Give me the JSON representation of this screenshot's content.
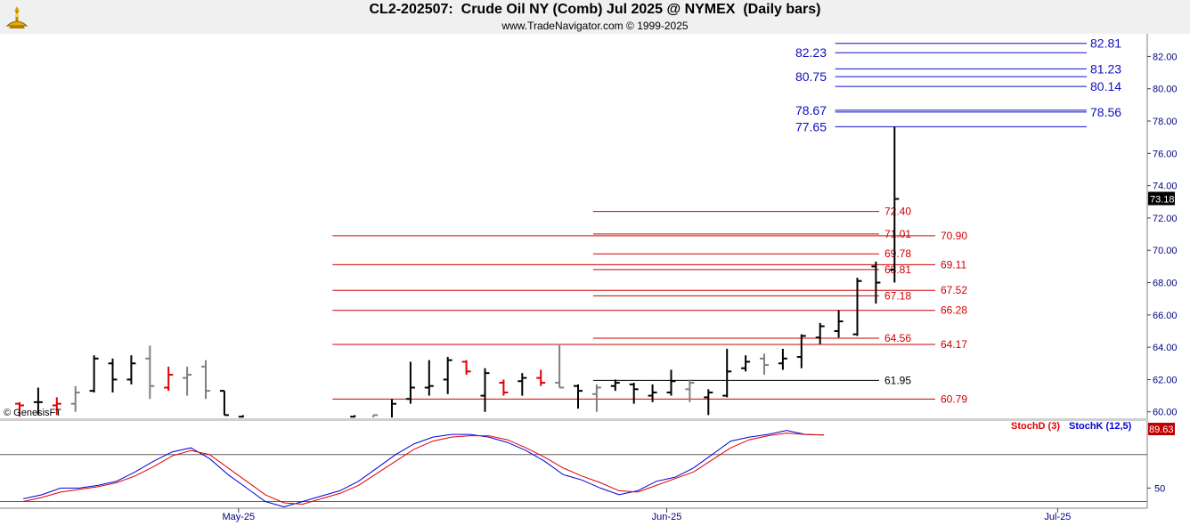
{
  "header": {
    "title": "CL2-202507:  Crude Oil NY (Comb) Jul 2025 @ NYMEX  (Daily bars)",
    "subtitle": "www.TradeNavigator.com © 1999-2025"
  },
  "colors": {
    "bar_default": "#000000",
    "bar_gray": "#808080",
    "bar_red": "#e00000",
    "bar_green": "#00cc00",
    "red_level": "#d00000",
    "blue_level": "#1010c0",
    "black_level": "#000000",
    "stochD": "#e00000",
    "stochK": "#0000dd",
    "last_price_bg": "#000000",
    "stoch_value_bg": "#c00000"
  },
  "chart_data": [
    {
      "type": "bar",
      "subtype": "ohlc",
      "title": "CL2-202507:  Crude Oil NY (Comb) Jul 2025 @ NYMEX  (Daily bars)",
      "watermark": "© GenesisFT",
      "x_tick_labels": [
        "May-25",
        "Jun-25",
        "Jul-25"
      ],
      "x_tick_index": [
        12,
        35,
        56
      ],
      "y_ticks": [
        "60.00",
        "62.00",
        "64.00",
        "66.00",
        "68.00",
        "70.00",
        "72.00",
        "74.00",
        "76.00",
        "78.00",
        "80.00",
        "82.00"
      ],
      "ylim": [
        59.6,
        83.4
      ],
      "last_price": "73.18",
      "bars": [
        {
          "i": 0,
          "o": 60.5,
          "h": 60.6,
          "l": 59.7,
          "c": 60.4,
          "color": "red"
        },
        {
          "i": 1,
          "o": 60.6,
          "h": 61.5,
          "l": 59.8,
          "c": 60.6,
          "color": "black"
        },
        {
          "i": 2,
          "o": 60.4,
          "h": 60.9,
          "l": 59.8,
          "c": 60.5,
          "color": "red"
        },
        {
          "i": 3,
          "o": 60.5,
          "h": 61.6,
          "l": 60.0,
          "c": 61.2,
          "color": "gray"
        },
        {
          "i": 4,
          "o": 61.3,
          "h": 63.5,
          "l": 61.2,
          "c": 63.3,
          "color": "black"
        },
        {
          "i": 5,
          "o": 63.0,
          "h": 63.3,
          "l": 61.2,
          "c": 62.0,
          "color": "black"
        },
        {
          "i": 6,
          "o": 62.0,
          "h": 63.5,
          "l": 61.7,
          "c": 63.0,
          "color": "black"
        },
        {
          "i": 7,
          "o": 63.3,
          "h": 64.1,
          "l": 60.8,
          "c": 61.6,
          "color": "gray"
        },
        {
          "i": 8,
          "o": 61.5,
          "h": 62.8,
          "l": 61.3,
          "c": 62.3,
          "color": "red"
        },
        {
          "i": 9,
          "o": 62.1,
          "h": 62.8,
          "l": 61.0,
          "c": 62.3,
          "color": "gray"
        },
        {
          "i": 10,
          "o": 62.8,
          "h": 63.2,
          "l": 60.8,
          "c": 61.3,
          "color": "gray"
        },
        {
          "i": 11,
          "o": 61.3,
          "h": 61.3,
          "l": 59.8,
          "c": 59.8,
          "color": "black"
        },
        {
          "i": 12,
          "o": 59.7,
          "h": 59.8,
          "l": 59.6,
          "c": 59.6,
          "color": "black"
        },
        {
          "i": 18,
          "o": 59.7,
          "h": 59.8,
          "l": 59.6,
          "c": 59.6,
          "color": "black"
        },
        {
          "i": 19,
          "o": 59.6,
          "h": 59.8,
          "l": 59.6,
          "c": 59.8,
          "color": "gray"
        },
        {
          "i": 20,
          "o": 59.6,
          "h": 60.8,
          "l": 59.6,
          "c": 60.5,
          "color": "black"
        },
        {
          "i": 21,
          "o": 60.8,
          "h": 63.1,
          "l": 60.5,
          "c": 61.5,
          "color": "black"
        },
        {
          "i": 22,
          "o": 61.5,
          "h": 63.2,
          "l": 61.0,
          "c": 61.6,
          "color": "black"
        },
        {
          "i": 23,
          "o": 62.0,
          "h": 63.4,
          "l": 61.1,
          "c": 63.2,
          "color": "black"
        },
        {
          "i": 24,
          "o": 63.1,
          "h": 63.2,
          "l": 62.3,
          "c": 62.5,
          "color": "red"
        },
        {
          "i": 25,
          "o": 61.0,
          "h": 62.7,
          "l": 60.0,
          "c": 62.4,
          "color": "black"
        },
        {
          "i": 26,
          "o": 61.8,
          "h": 62.0,
          "l": 61.0,
          "c": 61.2,
          "color": "red"
        },
        {
          "i": 27,
          "o": 61.9,
          "h": 62.4,
          "l": 61.0,
          "c": 62.1,
          "color": "black"
        },
        {
          "i": 28,
          "o": 62.1,
          "h": 62.6,
          "l": 61.6,
          "c": 61.8,
          "color": "red"
        },
        {
          "i": 29,
          "o": 61.8,
          "h": 64.2,
          "l": 61.5,
          "c": 61.5,
          "color": "gray"
        },
        {
          "i": 30,
          "o": 61.6,
          "h": 61.7,
          "l": 60.2,
          "c": 61.3,
          "color": "black"
        },
        {
          "i": 31,
          "o": 61.1,
          "h": 61.7,
          "l": 60.0,
          "c": 61.5,
          "color": "gray"
        },
        {
          "i": 32,
          "o": 61.6,
          "h": 62.0,
          "l": 61.3,
          "c": 61.8,
          "color": "black"
        },
        {
          "i": 33,
          "o": 61.7,
          "h": 61.8,
          "l": 60.5,
          "c": 61.4,
          "color": "black"
        },
        {
          "i": 34,
          "o": 61.0,
          "h": 61.7,
          "l": 60.6,
          "c": 61.2,
          "color": "black"
        },
        {
          "i": 35,
          "o": 61.2,
          "h": 62.6,
          "l": 61.0,
          "c": 61.9,
          "color": "black"
        },
        {
          "i": 36,
          "o": 61.4,
          "h": 62.0,
          "l": 60.6,
          "c": 61.8,
          "color": "gray"
        },
        {
          "i": 37,
          "o": 60.9,
          "h": 61.4,
          "l": 59.8,
          "c": 61.2,
          "color": "black"
        },
        {
          "i": 38,
          "o": 61.0,
          "h": 63.9,
          "l": 60.9,
          "c": 62.5,
          "color": "black"
        },
        {
          "i": 39,
          "o": 62.7,
          "h": 63.5,
          "l": 62.5,
          "c": 63.1,
          "color": "black"
        },
        {
          "i": 40,
          "o": 63.3,
          "h": 63.6,
          "l": 62.3,
          "c": 62.9,
          "color": "gray"
        },
        {
          "i": 41,
          "o": 63.0,
          "h": 63.9,
          "l": 62.6,
          "c": 63.3,
          "color": "black"
        },
        {
          "i": 42,
          "o": 63.4,
          "h": 64.8,
          "l": 62.7,
          "c": 64.7,
          "color": "black"
        },
        {
          "i": 43,
          "o": 64.6,
          "h": 65.5,
          "l": 64.2,
          "c": 65.3,
          "color": "black"
        },
        {
          "i": 44,
          "o": 65.0,
          "h": 66.3,
          "l": 64.6,
          "c": 65.6,
          "color": "black"
        },
        {
          "i": 45,
          "o": 64.8,
          "h": 68.3,
          "l": 64.7,
          "c": 68.1,
          "color": "black"
        },
        {
          "i": 46,
          "o": 69.0,
          "h": 69.3,
          "l": 66.7,
          "c": 68.0,
          "color": "black"
        },
        {
          "i": 47,
          "o": 68.8,
          "h": 77.65,
          "l": 68.0,
          "c": 73.18,
          "color": "black"
        }
      ],
      "levels": [
        {
          "price": 82.81,
          "label": "82.81",
          "color": "blue",
          "side": "right",
          "start_i": 44
        },
        {
          "price": 82.23,
          "label": "82.23",
          "color": "blue",
          "side": "left",
          "start_i": 44
        },
        {
          "price": 81.23,
          "label": "81.23",
          "color": "blue",
          "side": "right",
          "start_i": 44
        },
        {
          "price": 80.75,
          "label": "80.75",
          "color": "blue",
          "side": "left",
          "start_i": 44
        },
        {
          "price": 80.14,
          "label": "80.14",
          "color": "blue",
          "side": "right",
          "start_i": 44
        },
        {
          "price": 78.67,
          "label": "78.67",
          "color": "blue",
          "side": "left",
          "start_i": 44
        },
        {
          "price": 78.56,
          "label": "78.56",
          "color": "blue",
          "side": "right",
          "start_i": 44
        },
        {
          "price": 77.65,
          "label": "77.65",
          "color": "blue",
          "side": "left",
          "start_i": 44
        },
        {
          "price": 72.4,
          "label": "72.40",
          "color": "red",
          "side": "near",
          "start_i": 31
        },
        {
          "price": 71.01,
          "label": "71.01",
          "color": "red",
          "side": "near",
          "start_i": 31
        },
        {
          "price": 70.9,
          "label": "70.90",
          "color": "red",
          "side": "far",
          "start_i": 17
        },
        {
          "price": 69.78,
          "label": "69.78",
          "color": "red",
          "side": "near",
          "start_i": 31
        },
        {
          "price": 69.11,
          "label": "69.11",
          "color": "red",
          "side": "far",
          "start_i": 17
        },
        {
          "price": 68.81,
          "label": "68.81",
          "color": "red",
          "side": "near",
          "start_i": 31
        },
        {
          "price": 67.52,
          "label": "67.52",
          "color": "red",
          "side": "far",
          "start_i": 17
        },
        {
          "price": 67.18,
          "label": "67.18",
          "color": "red",
          "side": "near",
          "start_i": 31
        },
        {
          "price": 66.28,
          "label": "66.28",
          "color": "red",
          "side": "far",
          "start_i": 17
        },
        {
          "price": 64.56,
          "label": "64.56",
          "color": "red",
          "side": "near",
          "start_i": 31
        },
        {
          "price": 64.17,
          "label": "64.17",
          "color": "red",
          "side": "far",
          "start_i": 17
        },
        {
          "price": 61.95,
          "label": "61.95",
          "color": "black",
          "side": "near",
          "start_i": 31
        },
        {
          "price": 60.79,
          "label": "60.79",
          "color": "red",
          "side": "far",
          "start_i": 17
        }
      ]
    },
    {
      "type": "line",
      "title": "",
      "legend": [
        "StochD (3)",
        "StochK (12,5)"
      ],
      "y_ticks": [
        "50"
      ],
      "ylim": [
        35,
        100
      ],
      "ref_lines": [
        75,
        40
      ],
      "last_value": "89.63",
      "series": [
        {
          "name": "StochK (12,5)",
          "color": "blue",
          "values": [
            42,
            45,
            50,
            50,
            52,
            55,
            62,
            70,
            77,
            80,
            72,
            60,
            50,
            40,
            36,
            40,
            44,
            48,
            55,
            65,
            75,
            83,
            88,
            90,
            90,
            88,
            84,
            78,
            70,
            60,
            56,
            50,
            45,
            48,
            55,
            58,
            65,
            75,
            85,
            88,
            90,
            93,
            90,
            89.6
          ]
        },
        {
          "name": "StochD (3)",
          "color": "red",
          "values": [
            40,
            43,
            47,
            49,
            51,
            54,
            59,
            66,
            74,
            78,
            75,
            65,
            55,
            45,
            39,
            38,
            42,
            46,
            52,
            61,
            70,
            79,
            85,
            88,
            89,
            89,
            86,
            80,
            73,
            65,
            59,
            54,
            48,
            47,
            52,
            57,
            62,
            71,
            80,
            86,
            89,
            91,
            90,
            89.6
          ]
        }
      ]
    }
  ]
}
